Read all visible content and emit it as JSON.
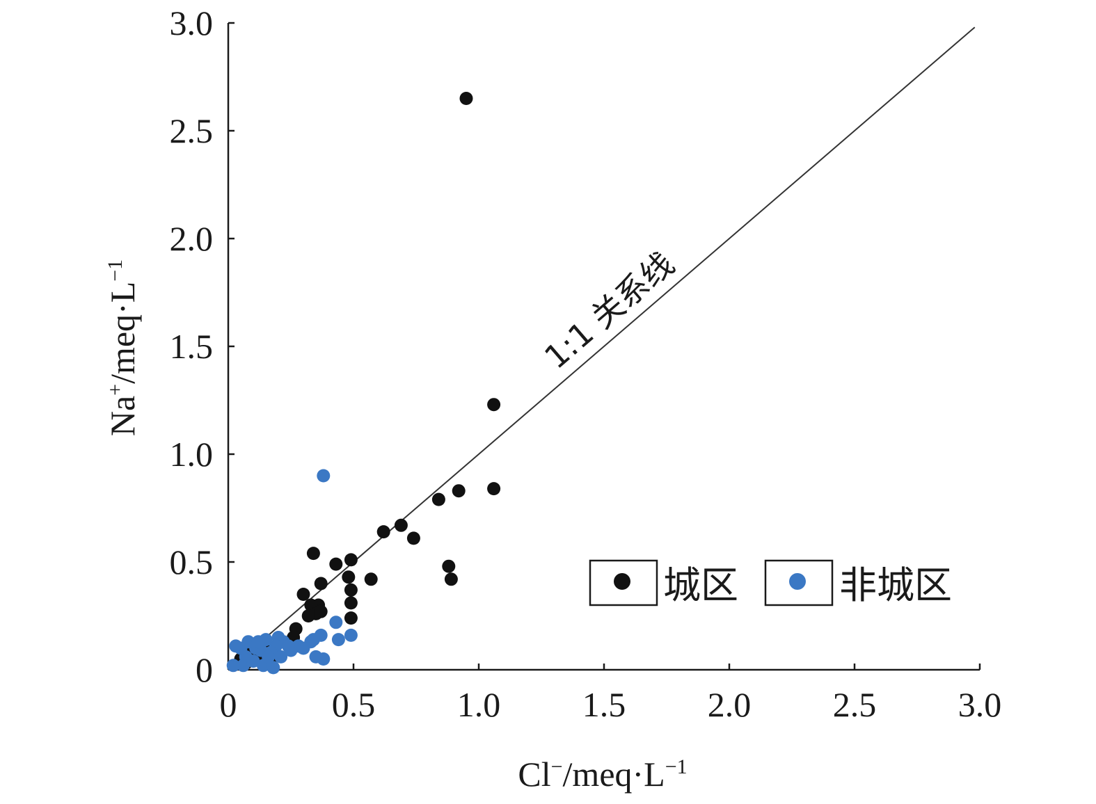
{
  "chart_data": {
    "type": "scatter",
    "xlabel": {
      "base": "Cl",
      "sup": "−",
      "rest": "/meq·L",
      "sup2": "−1"
    },
    "ylabel": {
      "base": "Na",
      "sup": "+",
      "rest": "/meq·L",
      "sup2": "−1"
    },
    "xlim": [
      0,
      3.0
    ],
    "ylim": [
      0,
      3.0
    ],
    "x_ticks": [
      "0",
      "0.5",
      "1.0",
      "1.5",
      "2.0",
      "2.5",
      "3.0"
    ],
    "y_ticks": [
      "0",
      "0.5",
      "1.0",
      "1.5",
      "2.0",
      "2.5",
      "3.0"
    ],
    "grid": false,
    "legend_position": "bottom-right",
    "reference_line": {
      "label": "1:1 关系线",
      "slope": 1,
      "x_end": 2.98
    },
    "series": [
      {
        "name": "城区",
        "color": "#111111",
        "points": [
          [
            0.95,
            2.65
          ],
          [
            1.06,
            1.23
          ],
          [
            1.06,
            0.84
          ],
          [
            0.92,
            0.83
          ],
          [
            0.84,
            0.79
          ],
          [
            0.69,
            0.67
          ],
          [
            0.74,
            0.61
          ],
          [
            0.62,
            0.64
          ],
          [
            0.88,
            0.48
          ],
          [
            0.89,
            0.42
          ],
          [
            0.57,
            0.42
          ],
          [
            0.49,
            0.51
          ],
          [
            0.43,
            0.49
          ],
          [
            0.34,
            0.54
          ],
          [
            0.48,
            0.43
          ],
          [
            0.49,
            0.37
          ],
          [
            0.49,
            0.31
          ],
          [
            0.49,
            0.24
          ],
          [
            0.37,
            0.4
          ],
          [
            0.3,
            0.35
          ],
          [
            0.36,
            0.3
          ],
          [
            0.33,
            0.3
          ],
          [
            0.35,
            0.26
          ],
          [
            0.37,
            0.27
          ],
          [
            0.32,
            0.25
          ],
          [
            0.27,
            0.19
          ],
          [
            0.26,
            0.15
          ],
          [
            0.15,
            0.13
          ],
          [
            0.09,
            0.1
          ],
          [
            0.12,
            0.06
          ],
          [
            0.17,
            0.05
          ],
          [
            0.07,
            0.03
          ],
          [
            0.05,
            0.05
          ]
        ]
      },
      {
        "name": "非城区",
        "color": "#3b78c4",
        "points": [
          [
            0.38,
            0.9
          ],
          [
            0.43,
            0.22
          ],
          [
            0.49,
            0.16
          ],
          [
            0.37,
            0.16
          ],
          [
            0.34,
            0.14
          ],
          [
            0.44,
            0.14
          ],
          [
            0.33,
            0.13
          ],
          [
            0.35,
            0.06
          ],
          [
            0.38,
            0.05
          ],
          [
            0.28,
            0.11
          ],
          [
            0.25,
            0.09
          ],
          [
            0.22,
            0.13
          ],
          [
            0.2,
            0.15
          ],
          [
            0.19,
            0.11
          ],
          [
            0.17,
            0.08
          ],
          [
            0.15,
            0.14
          ],
          [
            0.13,
            0.09
          ],
          [
            0.11,
            0.1
          ],
          [
            0.08,
            0.13
          ],
          [
            0.07,
            0.06
          ],
          [
            0.05,
            0.1
          ],
          [
            0.03,
            0.11
          ],
          [
            0.02,
            0.02
          ],
          [
            0.06,
            0.02
          ],
          [
            0.1,
            0.04
          ],
          [
            0.14,
            0.02
          ],
          [
            0.18,
            0.01
          ],
          [
            0.21,
            0.06
          ],
          [
            0.24,
            0.11
          ],
          [
            0.3,
            0.1
          ],
          [
            0.12,
            0.13
          ],
          [
            0.16,
            0.06
          ]
        ]
      }
    ]
  }
}
